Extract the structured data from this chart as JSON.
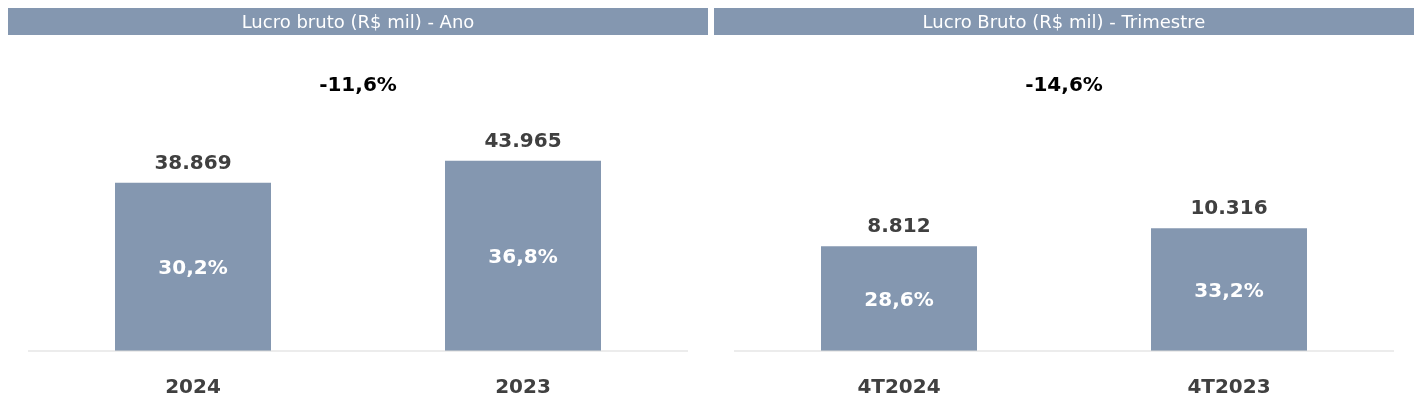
{
  "chart_data": [
    {
      "type": "bar",
      "title": "Lucro bruto (R$ mil) - Ano",
      "categories": [
        "2024",
        "2023"
      ],
      "values": [
        38869,
        43965
      ],
      "value_labels": [
        "38.869",
        "43.965"
      ],
      "color": "#8497b0",
      "annotations": [
        "-11,6%",
        "30,2%",
        "36,8%"
      ]
    },
    {
      "type": "bar",
      "title": "Lucro Bruto (R$ mil) - Trimestre",
      "categories": [
        "4T2024",
        "4T2023"
      ],
      "values": [
        8812,
        10316
      ],
      "value_labels": [
        "8.812",
        "10.316"
      ],
      "color": "#8497b0",
      "annotations": [
        "-14,6%",
        "28,6%",
        "33,2%"
      ]
    }
  ]
}
